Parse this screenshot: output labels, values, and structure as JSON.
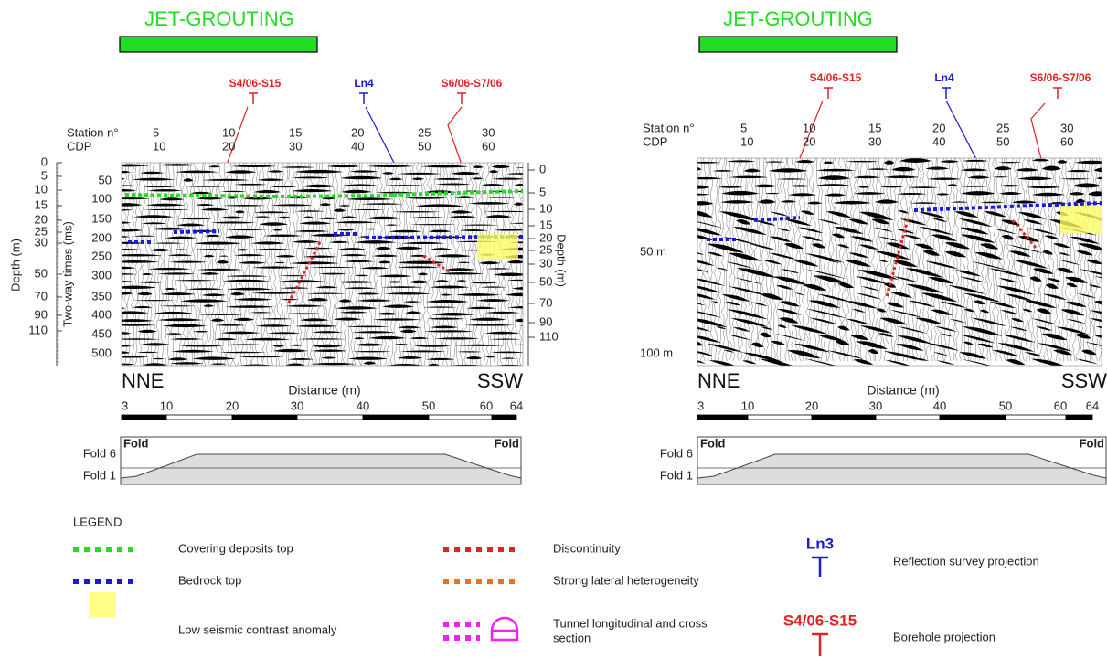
{
  "panels": [
    {
      "title": "JET-GROUTING",
      "markers": [
        {
          "label": "S4/06-S15"
        },
        {
          "label": "Ln4"
        },
        {
          "label": "S6/06-S7/06"
        }
      ],
      "station_label": "Station n°",
      "cdp_label": "CDP",
      "stations": [
        "5",
        "10",
        "15",
        "20",
        "25",
        "30"
      ],
      "cdps": [
        "10",
        "20",
        "30",
        "40",
        "50",
        "60"
      ],
      "left_axis_title": "Depth (m)",
      "time_axis_title": "Two-way times (ms)",
      "right_axis_title": "Depth (m)",
      "depth_ticks_left": [
        "0",
        "5",
        "10",
        "15",
        "20",
        "25",
        "30",
        "50",
        "70",
        "90",
        "110"
      ],
      "time_ticks": [
        "50",
        "100",
        "150",
        "200",
        "250",
        "300",
        "350",
        "400",
        "450",
        "500"
      ],
      "depth_ticks_right": [
        "0",
        "5",
        "10",
        "15",
        "20",
        "25",
        "30",
        "50",
        "70",
        "90",
        "110"
      ],
      "direction_left": "NNE",
      "direction_right": "SSW",
      "distance_label": "Distance (m)",
      "scale_ticks": [
        "3",
        "10",
        "20",
        "30",
        "40",
        "50",
        "60",
        "64"
      ],
      "fold_titles": [
        "Fold",
        "Fold"
      ],
      "fold_levels": [
        "Fold 6",
        "Fold 1"
      ]
    },
    {
      "title": "JET-GROUTING",
      "markers": [
        {
          "label": "S4/06-S15"
        },
        {
          "label": "Ln4"
        },
        {
          "label": "S6/06-S7/06"
        }
      ],
      "station_label": "Station n°",
      "cdp_label": "CDP",
      "stations": [
        "5",
        "10",
        "15",
        "20",
        "25",
        "30"
      ],
      "cdps": [
        "10",
        "20",
        "30",
        "40",
        "50",
        "60"
      ],
      "depth_labels": [
        "50 m",
        "100 m"
      ],
      "direction_left": "NNE",
      "direction_right": "SSW",
      "distance_label": "Distance (m)",
      "scale_ticks": [
        "3",
        "10",
        "20",
        "30",
        "40",
        "50",
        "60",
        "64"
      ],
      "fold_titles": [
        "Fold",
        "Fold"
      ],
      "fold_levels": [
        "Fold 6",
        "Fold 1"
      ]
    }
  ],
  "legend": {
    "title": "LEGEND",
    "items": [
      "Covering deposits top",
      "Bedrock top",
      "Low seismic contrast anomaly",
      "Discontinuity",
      "Strong lateral heterogeneity"
    ],
    "tunnel": [
      "Tunnel longitudinal and cross",
      "section"
    ],
    "reflection_symbol": "Ln3",
    "reflection_text": "Reflection survey projection",
    "borehole_symbol": "S4/06-S15",
    "borehole_text": "Borehole projection"
  }
}
